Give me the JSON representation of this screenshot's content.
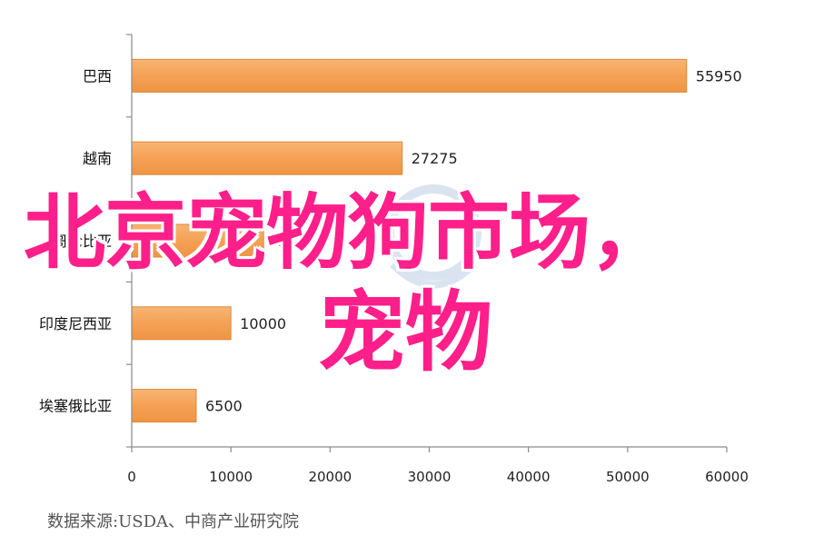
{
  "chart_data": {
    "type": "bar",
    "orientation": "horizontal",
    "categories": [
      "巴西",
      "越南",
      "哥伦比亚",
      "印度尼西亚",
      "埃塞俄比亚"
    ],
    "values": [
      55950,
      27275,
      13300,
      10000,
      6500
    ],
    "value_labels": [
      "55950",
      "27275",
      "13300",
      "10000",
      "6500"
    ],
    "title": "",
    "xlabel": "",
    "ylabel": "",
    "xlim": [
      0,
      60000
    ],
    "x_ticks": [
      0,
      10000,
      20000,
      30000,
      40000,
      50000,
      60000
    ],
    "x_tick_labels": [
      "0",
      "10000",
      "20000",
      "30000",
      "40000",
      "50000",
      "60000"
    ],
    "grid": false,
    "bar_color": "#f5a35a"
  },
  "overlay": {
    "line1": "北京宠物狗市场，",
    "line2": "宠物",
    "color": "#ff1f8a"
  },
  "source": {
    "text": "数据来源:USDA、中商产业研究院"
  }
}
